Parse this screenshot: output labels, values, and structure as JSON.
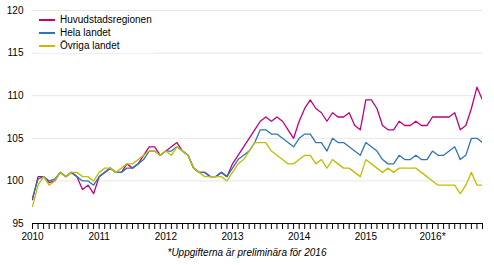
{
  "chart_data": {
    "type": "line",
    "footnote": "*Uppgifterna är preliminära för 2016",
    "categories": [
      "2010",
      null,
      null,
      null,
      null,
      null,
      null,
      null,
      null,
      null,
      null,
      null,
      "2011",
      null,
      null,
      null,
      null,
      null,
      null,
      null,
      null,
      null,
      null,
      null,
      "2012",
      null,
      null,
      null,
      null,
      null,
      null,
      null,
      null,
      null,
      null,
      null,
      "2013",
      null,
      null,
      null,
      null,
      null,
      null,
      null,
      null,
      null,
      null,
      null,
      "2014",
      null,
      null,
      null,
      null,
      null,
      null,
      null,
      null,
      null,
      null,
      null,
      "2015",
      null,
      null,
      null,
      null,
      null,
      null,
      null,
      null,
      null,
      null,
      null,
      "2016*",
      null,
      null,
      null,
      null,
      null,
      null,
      null,
      null,
      null
    ],
    "series": [
      {
        "name": "Huvudstadsregionen",
        "color": "#c0007e",
        "values": [
          97.8,
          100.5,
          100.5,
          99.8,
          100.0,
          101.0,
          100.5,
          101.0,
          100.5,
          99.0,
          99.5,
          98.5,
          100.5,
          101.0,
          101.5,
          101.0,
          101.0,
          102.0,
          101.5,
          102.0,
          103.0,
          104.0,
          104.0,
          103.0,
          103.5,
          104.0,
          104.5,
          103.5,
          103.0,
          101.5,
          101.0,
          101.0,
          100.5,
          100.5,
          101.0,
          100.5,
          102.0,
          103.0,
          104.0,
          105.0,
          106.0,
          107.0,
          107.5,
          107.0,
          107.5,
          107.0,
          106.0,
          105.0,
          107.0,
          108.5,
          109.5,
          108.5,
          108.0,
          107.0,
          108.0,
          107.5,
          107.5,
          108.0,
          106.5,
          106.0,
          109.5,
          109.5,
          108.5,
          106.5,
          106.0,
          106.0,
          107.0,
          106.5,
          106.5,
          107.0,
          106.5,
          106.5,
          107.5,
          107.5,
          107.5,
          107.5,
          108.0,
          106.0,
          106.5,
          108.5,
          111.0,
          109.5
        ]
      },
      {
        "name": "Hela landet",
        "color": "#2e75b6",
        "values": [
          98.0,
          100.2,
          100.5,
          100.0,
          100.2,
          101.0,
          100.5,
          101.0,
          100.5,
          100.0,
          100.0,
          99.5,
          100.5,
          101.0,
          101.5,
          101.0,
          101.0,
          101.5,
          101.5,
          102.0,
          102.5,
          103.5,
          103.5,
          103.0,
          103.5,
          103.5,
          104.0,
          103.5,
          103.0,
          101.5,
          101.0,
          101.0,
          100.5,
          100.5,
          101.0,
          100.5,
          101.5,
          102.5,
          103.0,
          103.5,
          104.5,
          106.0,
          106.0,
          105.5,
          105.5,
          105.0,
          104.5,
          104.0,
          105.0,
          105.5,
          105.5,
          104.5,
          104.5,
          103.5,
          105.0,
          104.5,
          104.5,
          104.0,
          103.5,
          103.0,
          104.5,
          104.0,
          103.5,
          102.5,
          102.0,
          102.0,
          103.0,
          102.5,
          102.5,
          103.0,
          102.5,
          102.5,
          103.5,
          103.0,
          103.0,
          103.5,
          104.0,
          102.5,
          103.0,
          105.0,
          105.0,
          104.5
        ]
      },
      {
        "name": "Övriga landet",
        "color": "#bfbf00",
        "values": [
          97.0,
          99.5,
          100.5,
          99.5,
          100.0,
          101.0,
          100.5,
          101.0,
          101.0,
          100.5,
          100.5,
          100.0,
          101.0,
          101.5,
          101.5,
          101.0,
          101.5,
          102.0,
          102.0,
          102.5,
          103.0,
          103.5,
          103.5,
          103.0,
          103.5,
          103.0,
          104.0,
          103.5,
          103.0,
          101.5,
          101.0,
          100.5,
          100.5,
          100.5,
          100.5,
          100.0,
          101.0,
          102.0,
          102.5,
          103.5,
          104.5,
          104.5,
          104.5,
          103.5,
          103.0,
          102.5,
          102.0,
          102.0,
          102.5,
          103.0,
          103.0,
          102.0,
          102.5,
          101.5,
          102.5,
          102.0,
          101.5,
          101.5,
          101.0,
          100.5,
          102.5,
          102.0,
          101.5,
          101.0,
          101.5,
          101.0,
          101.5,
          101.5,
          101.5,
          101.5,
          101.0,
          100.5,
          100.0,
          99.5,
          99.5,
          99.5,
          99.5,
          98.5,
          99.5,
          101.0,
          99.5,
          99.5
        ]
      }
    ],
    "ylim": [
      95,
      120
    ],
    "yticks": [
      95,
      100,
      105,
      110,
      115,
      120
    ],
    "grid": true,
    "legend": "upper left"
  }
}
